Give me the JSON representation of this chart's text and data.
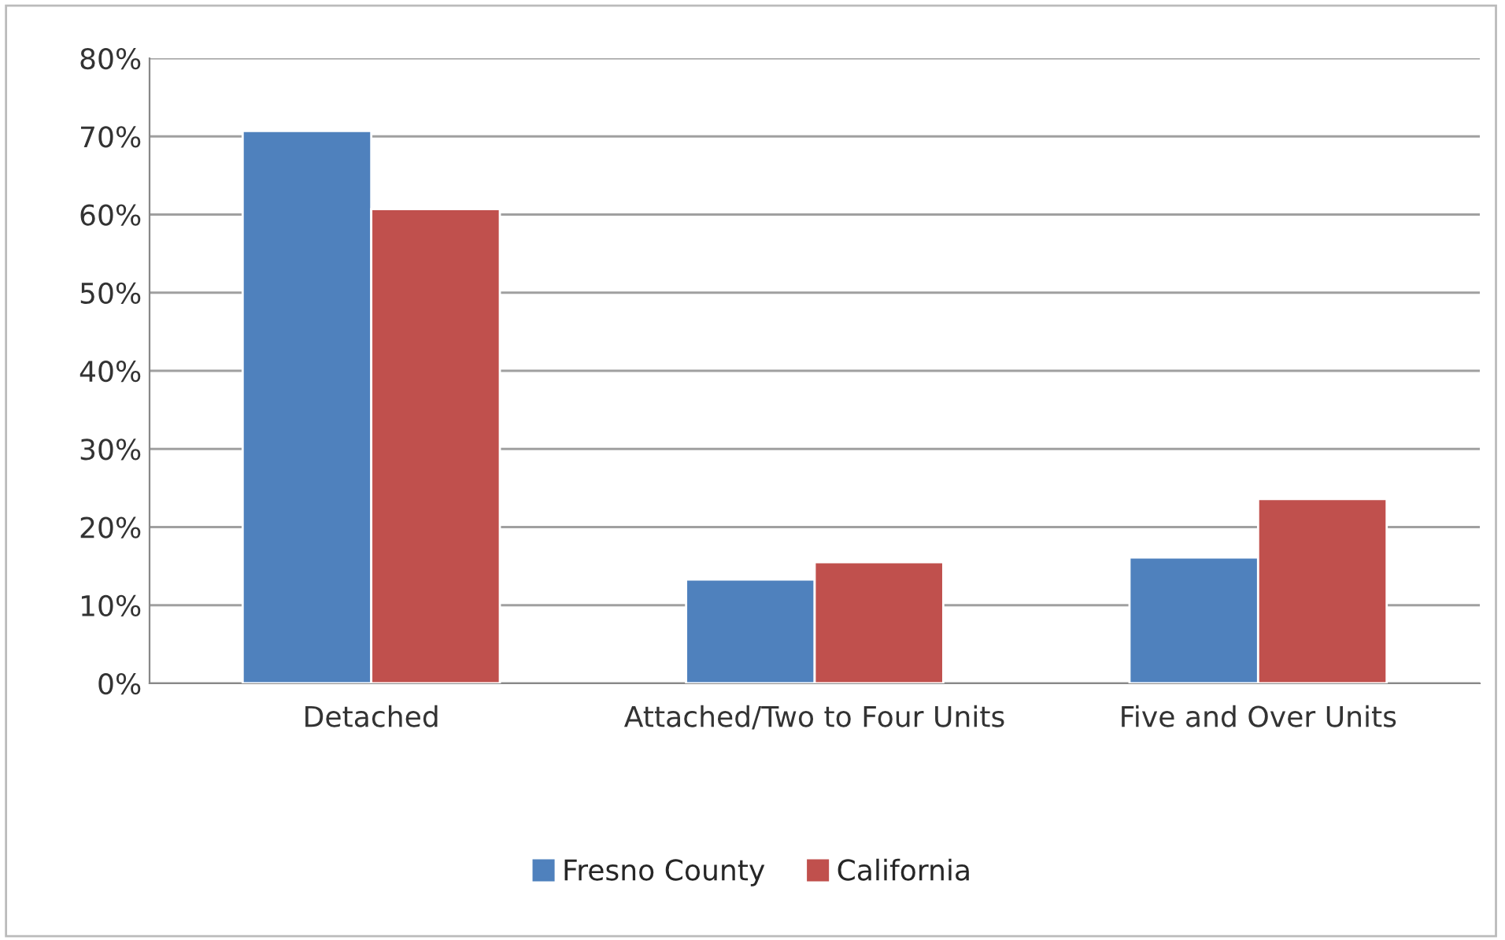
{
  "chart_data": {
    "type": "bar",
    "categories": [
      "Detached",
      "Attached/Two to Four Units",
      "Five and Over Units"
    ],
    "series": [
      {
        "name": "Fresno County",
        "color": "#4f81bd",
        "values": [
          70.7,
          13.3,
          16.1
        ]
      },
      {
        "name": "California",
        "color": "#c0504d",
        "values": [
          60.7,
          15.5,
          23.6
        ]
      }
    ],
    "ylim": [
      0,
      80
    ],
    "yticks": [
      {
        "value": 0,
        "label": "0%"
      },
      {
        "value": 10,
        "label": "10%"
      },
      {
        "value": 20,
        "label": "20%"
      },
      {
        "value": 30,
        "label": "30%"
      },
      {
        "value": 40,
        "label": "40%"
      },
      {
        "value": 50,
        "label": "50%"
      },
      {
        "value": 60,
        "label": "60%"
      },
      {
        "value": 70,
        "label": "70%"
      },
      {
        "value": 80,
        "label": "80%"
      }
    ],
    "grid": "y",
    "legend": "bottom"
  }
}
